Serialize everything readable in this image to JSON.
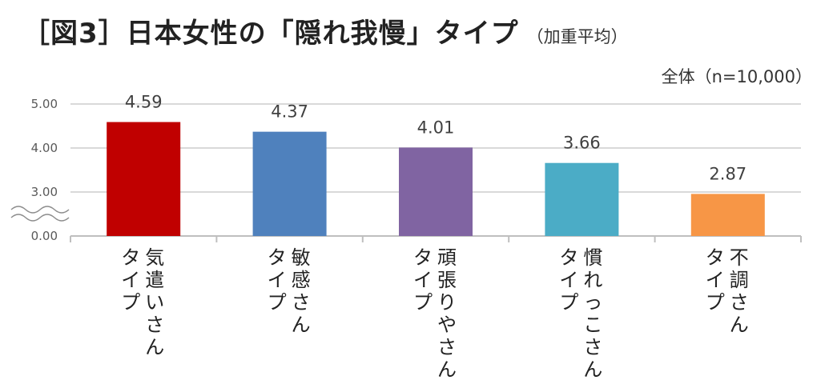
{
  "title": "［図3］日本女性の「隠れ我慢」タイプ",
  "subtitle": "（加重平均）",
  "note": "全体（n=10,000）",
  "chart_data": {
    "type": "bar",
    "categories": [
      "気遣いさん",
      "敏感さん",
      "頑張りやさん",
      "慣れっこさん",
      "不調さん"
    ],
    "category_suffix": "タイプ",
    "values": [
      4.59,
      4.37,
      4.01,
      3.66,
      2.87
    ],
    "value_labels": [
      "4.59",
      "4.37",
      "4.01",
      "3.66",
      "2.87"
    ],
    "colors": [
      "#c00000",
      "#4f81bd",
      "#8064a2",
      "#4bacc6",
      "#f79646"
    ],
    "yticks": [
      "5.00",
      "4.00",
      "3.00",
      "0.00"
    ],
    "ytick_values": [
      5,
      4,
      3,
      0
    ],
    "ylim": [
      0,
      5
    ],
    "axis_break": "between 3.00 and 0.00",
    "grid": true
  }
}
